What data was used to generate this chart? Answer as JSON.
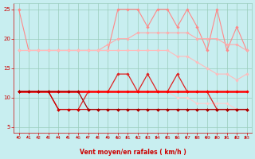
{
  "x": [
    0,
    1,
    2,
    3,
    4,
    5,
    6,
    7,
    8,
    9,
    10,
    11,
    12,
    13,
    14,
    15,
    16,
    17,
    18,
    19,
    20,
    21,
    22,
    23
  ],
  "series": [
    {
      "name": "top_pink_jagged",
      "color": "#ff8888",
      "lw": 0.8,
      "marker": "D",
      "markersize": 1.8,
      "values": [
        25,
        18,
        18,
        18,
        18,
        18,
        18,
        18,
        18,
        18,
        25,
        25,
        25,
        22,
        25,
        25,
        22,
        25,
        22,
        18,
        25,
        18,
        22,
        18
      ]
    },
    {
      "name": "upper_band_top",
      "color": "#ffaaaa",
      "lw": 0.8,
      "marker": "D",
      "markersize": 1.8,
      "values": [
        18,
        18,
        18,
        18,
        18,
        18,
        18,
        18,
        18,
        19,
        20,
        20,
        21,
        21,
        21,
        21,
        21,
        21,
        20,
        20,
        20,
        19,
        19,
        18
      ]
    },
    {
      "name": "upper_band_bottom",
      "color": "#ffbbbb",
      "lw": 0.8,
      "marker": "D",
      "markersize": 1.8,
      "values": [
        18,
        18,
        18,
        18,
        18,
        18,
        18,
        18,
        18,
        18,
        18,
        18,
        18,
        18,
        18,
        18,
        17,
        17,
        16,
        15,
        14,
        14,
        13,
        14
      ]
    },
    {
      "name": "lower_band_top",
      "color": "#ffcccc",
      "lw": 0.8,
      "marker": "D",
      "markersize": 1.8,
      "values": [
        11,
        11,
        11,
        11,
        11,
        11,
        11,
        11,
        11,
        11,
        11,
        11,
        11,
        11,
        11,
        11,
        10,
        10,
        9,
        9,
        9,
        9,
        8,
        8
      ]
    },
    {
      "name": "red_oscillating",
      "color": "#dd2222",
      "lw": 0.9,
      "marker": "D",
      "markersize": 1.8,
      "values": [
        11,
        11,
        11,
        11,
        8,
        8,
        8,
        11,
        11,
        11,
        14,
        14,
        11,
        14,
        11,
        11,
        14,
        11,
        11,
        11,
        8,
        8,
        8,
        8
      ]
    },
    {
      "name": "red_flat",
      "color": "#ff0000",
      "lw": 1.8,
      "marker": "D",
      "markersize": 1.8,
      "values": [
        11,
        11,
        11,
        11,
        11,
        11,
        11,
        11,
        11,
        11,
        11,
        11,
        11,
        11,
        11,
        11,
        11,
        11,
        11,
        11,
        11,
        11,
        11,
        11
      ]
    },
    {
      "name": "dark_diagonal1",
      "color": "#cc0000",
      "lw": 0.9,
      "marker": "D",
      "markersize": 1.8,
      "values": [
        11,
        11,
        11,
        11,
        8,
        8,
        8,
        8,
        8,
        8,
        8,
        8,
        8,
        8,
        8,
        8,
        8,
        8,
        8,
        8,
        8,
        8,
        8,
        8
      ]
    },
    {
      "name": "dark_diagonal2",
      "color": "#aa0000",
      "lw": 0.9,
      "marker": "D",
      "markersize": 1.8,
      "values": [
        11,
        11,
        11,
        11,
        11,
        11,
        11,
        8,
        8,
        8,
        8,
        8,
        8,
        8,
        8,
        8,
        8,
        8,
        8,
        8,
        8,
        8,
        8,
        8
      ]
    }
  ],
  "xlabel": "Vent moyen/en rafales ( km/h )",
  "xlim": [
    -0.5,
    23.5
  ],
  "ylim": [
    4,
    26
  ],
  "yticks": [
    5,
    10,
    15,
    20,
    25
  ],
  "xticks": [
    0,
    1,
    2,
    3,
    4,
    5,
    6,
    7,
    8,
    9,
    10,
    11,
    12,
    13,
    14,
    15,
    16,
    17,
    18,
    19,
    20,
    21,
    22,
    23
  ],
  "bg_color": "#c8eef0",
  "grid_color": "#99ccbb",
  "tick_color": "#cc0000",
  "label_color": "#cc0000",
  "arrow_color": "#cc0000"
}
